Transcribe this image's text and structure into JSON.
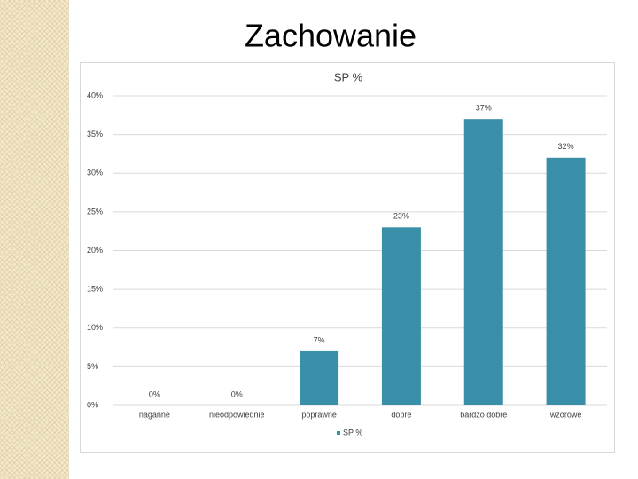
{
  "slide_title": "Zachowanie",
  "chart_data": {
    "type": "bar",
    "title": "SP %",
    "categories": [
      "naganne",
      "nieodpowiednie",
      "poprawne",
      "dobre",
      "bardzo dobre",
      "wzorowe"
    ],
    "series": [
      {
        "name": "SP %",
        "color": "#3a8fa8",
        "values": [
          0,
          0,
          7,
          23,
          37,
          32
        ],
        "value_labels": [
          "0%",
          "0%",
          "7%",
          "23%",
          "37%",
          "32%"
        ]
      }
    ],
    "ylim": [
      0,
      40
    ],
    "yticks": [
      {
        "value": 0,
        "label": "0%"
      },
      {
        "value": 5,
        "label": "5%"
      },
      {
        "value": 10,
        "label": "10%"
      },
      {
        "value": 15,
        "label": "15%"
      },
      {
        "value": 20,
        "label": "20%"
      },
      {
        "value": 25,
        "label": "25%"
      },
      {
        "value": 30,
        "label": "30%"
      },
      {
        "value": 35,
        "label": "35%"
      },
      {
        "value": 40,
        "label": "40%"
      }
    ],
    "grid": true,
    "legend": "bottom"
  }
}
